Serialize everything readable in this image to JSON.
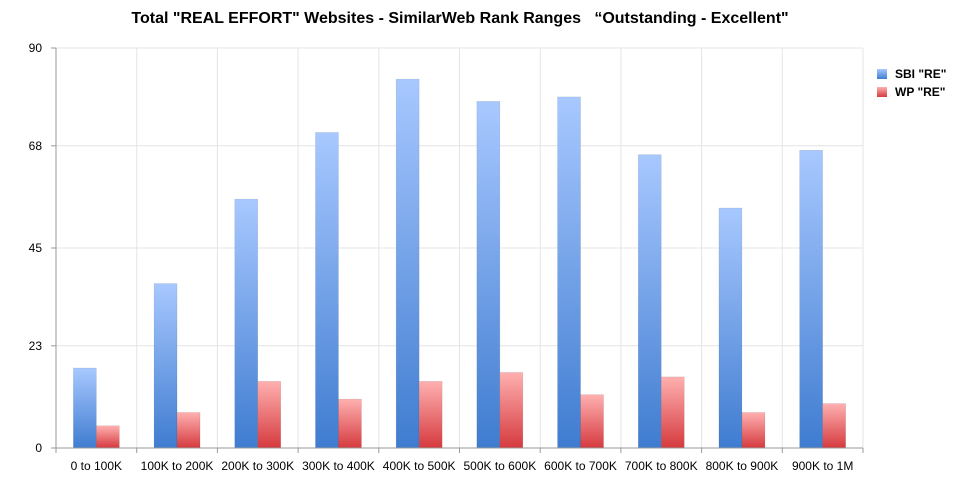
{
  "chart_data": {
    "type": "bar",
    "title": "Total \"REAL EFFORT\" Websites - SimilarWeb Rank Ranges   “Outstanding - Excellent\"",
    "xlabel": "",
    "ylabel": "",
    "ylim": [
      0,
      90
    ],
    "yticks": [
      "0",
      "23",
      "45",
      "68",
      "90"
    ],
    "grid": true,
    "legend_position": "right",
    "categories": [
      "0 to 100K",
      "100K to 200K",
      "200K to 300K",
      "300K to 400K",
      "400K to 500K",
      "500K to 600K",
      "600K to 700K",
      "700K to 800K",
      "800K to 900K",
      "900K to 1M"
    ],
    "series": [
      {
        "name": "SBI \"RE\"",
        "color": "#5b8fd6",
        "values": [
          18,
          37,
          56,
          71,
          83,
          78,
          79,
          66,
          54,
          67
        ]
      },
      {
        "name": "WP \"RE\"",
        "color": "#d9474c",
        "values": [
          5,
          8,
          15,
          11,
          15,
          17,
          12,
          16,
          8,
          10
        ]
      }
    ]
  }
}
